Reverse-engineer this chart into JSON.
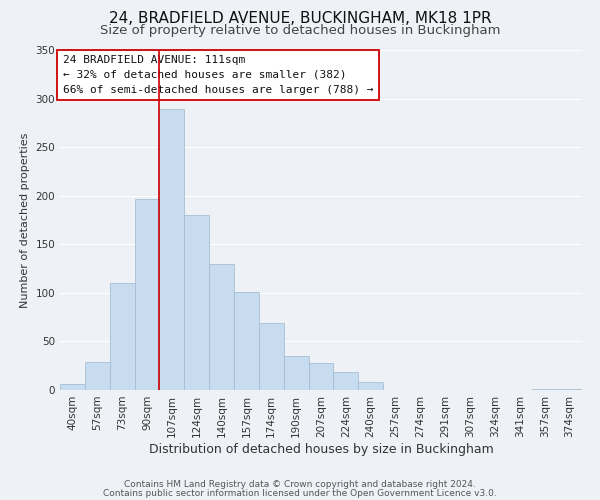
{
  "title": "24, BRADFIELD AVENUE, BUCKINGHAM, MK18 1PR",
  "subtitle": "Size of property relative to detached houses in Buckingham",
  "xlabel": "Distribution of detached houses by size in Buckingham",
  "ylabel": "Number of detached properties",
  "footnote1": "Contains HM Land Registry data © Crown copyright and database right 2024.",
  "footnote2": "Contains public sector information licensed under the Open Government Licence v3.0.",
  "bar_labels": [
    "40sqm",
    "57sqm",
    "73sqm",
    "90sqm",
    "107sqm",
    "124sqm",
    "140sqm",
    "157sqm",
    "174sqm",
    "190sqm",
    "207sqm",
    "224sqm",
    "240sqm",
    "257sqm",
    "274sqm",
    "291sqm",
    "307sqm",
    "324sqm",
    "341sqm",
    "357sqm",
    "374sqm"
  ],
  "bar_heights": [
    6,
    29,
    110,
    197,
    289,
    180,
    130,
    101,
    69,
    35,
    28,
    19,
    8,
    0,
    0,
    0,
    0,
    0,
    0,
    1,
    1
  ],
  "bar_color": "#c8dcf0",
  "bar_edgecolor": "#a0b8d0",
  "highlight_line_index": 4,
  "highlight_line_color": "#cc0000",
  "ylim": [
    0,
    350
  ],
  "yticks": [
    0,
    50,
    100,
    150,
    200,
    250,
    300,
    350
  ],
  "annotation_title": "24 BRADFIELD AVENUE: 111sqm",
  "annotation_line1": "← 32% of detached houses are smaller (382)",
  "annotation_line2": "66% of semi-detached houses are larger (788) →",
  "annotation_box_facecolor": "#ffffff",
  "annotation_box_edgecolor": "#cc0000",
  "bg_color": "#eef2f7",
  "grid_color": "#ffffff",
  "title_fontsize": 11,
  "subtitle_fontsize": 9.5,
  "xlabel_fontsize": 9,
  "ylabel_fontsize": 8,
  "tick_fontsize": 7.5,
  "annotation_fontsize": 8,
  "footnote_fontsize": 6.5
}
